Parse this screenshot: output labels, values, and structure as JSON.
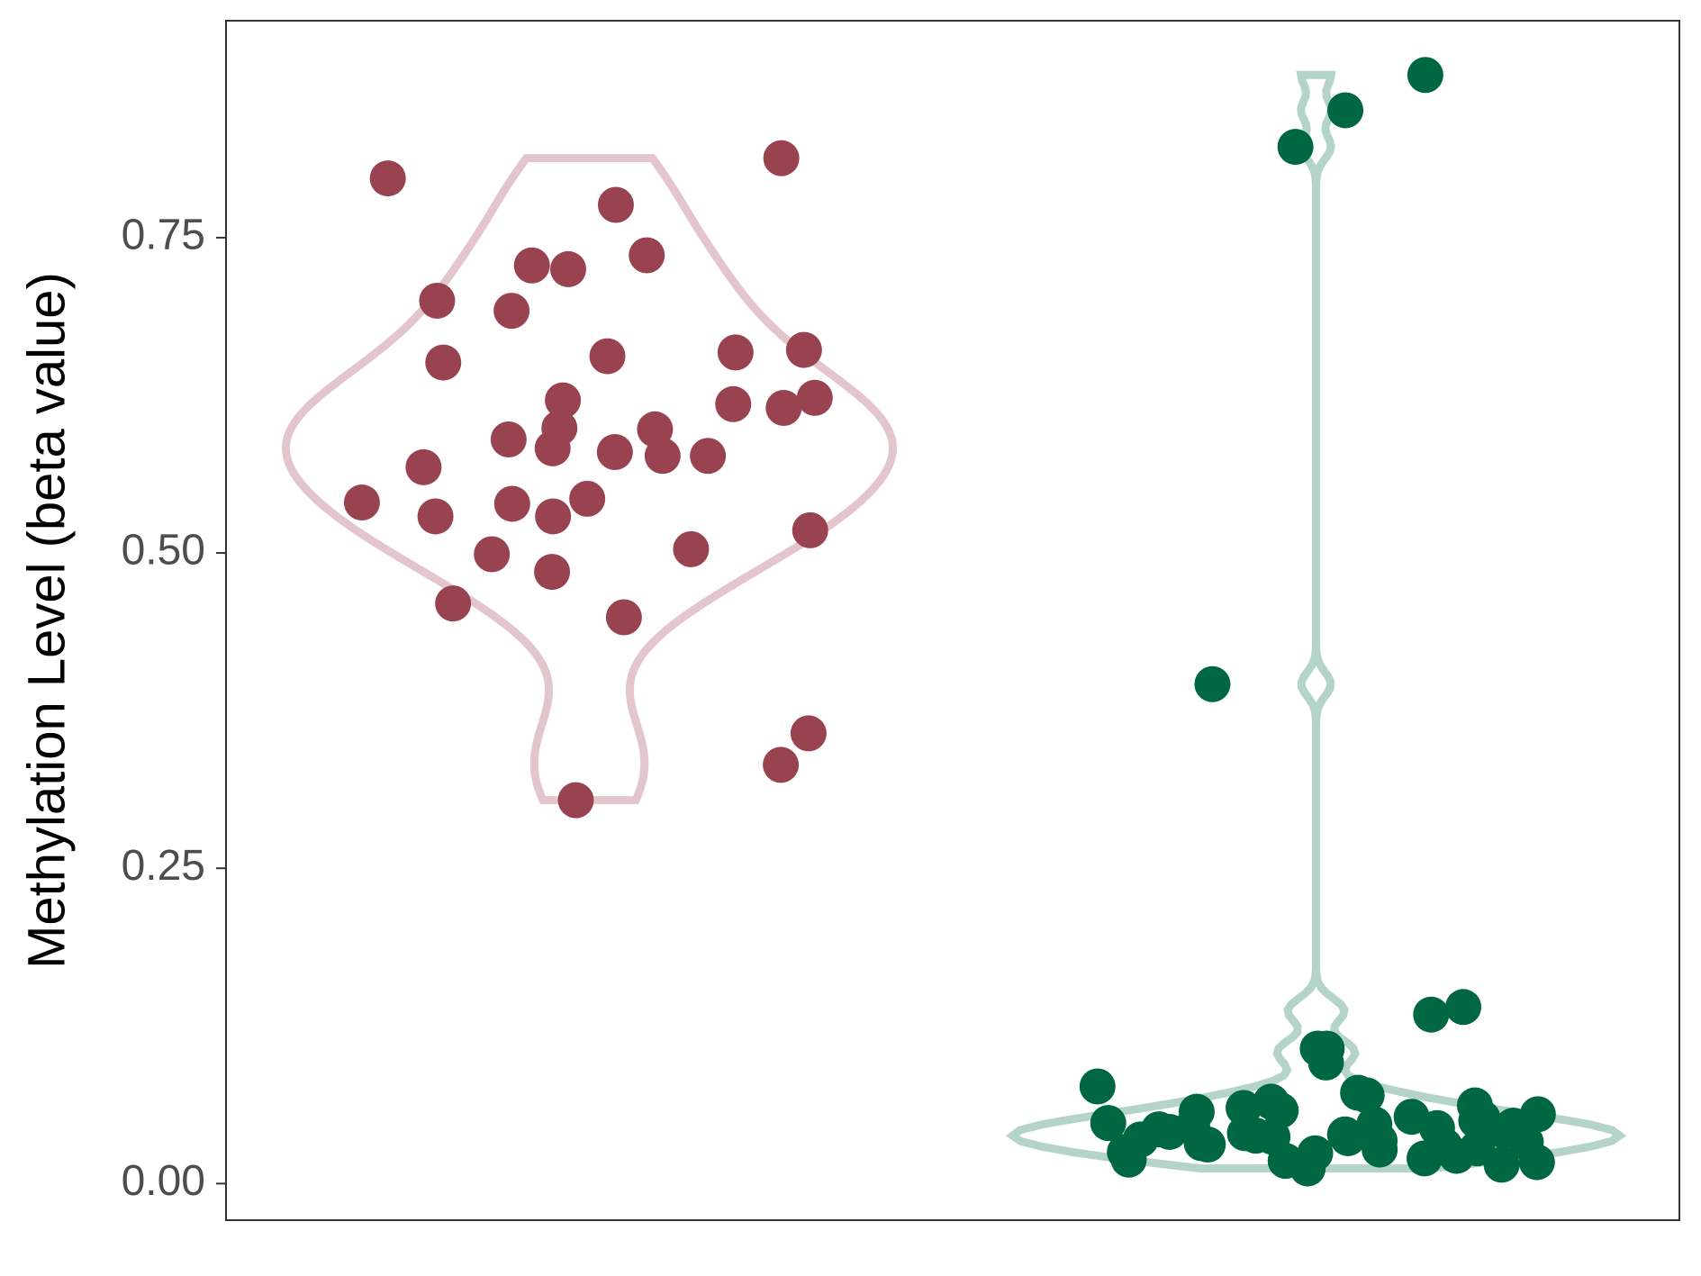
{
  "chart_data": {
    "type": "violin",
    "y_label": "Methylation Level (beta value)",
    "ylim": [
      -0.029,
      0.922
    ],
    "yticks": [
      {
        "value": 0,
        "label": "0.00"
      },
      {
        "value": 0.25,
        "label": "0.25"
      },
      {
        "value": 0.5,
        "label": "0.50"
      },
      {
        "value": 0.75,
        "label": "0.75"
      }
    ],
    "grid": false,
    "series": [
      {
        "color": "#9a4350",
        "outline_color": "#e3c6cb",
        "values": [
          0.813,
          0.797,
          0.776,
          0.728,
          0.725,
          0.736,
          0.7,
          0.692,
          0.656,
          0.661,
          0.659,
          0.651,
          0.623,
          0.618,
          0.621,
          0.615,
          0.599,
          0.598,
          0.59,
          0.577,
          0.58,
          0.577,
          0.583,
          0.568,
          0.539,
          0.543,
          0.54,
          0.529,
          0.529,
          0.518,
          0.503,
          0.499,
          0.485,
          0.46,
          0.449,
          0.357,
          0.332,
          0.304
        ]
      },
      {
        "color": "#006743",
        "outline_color": "#b5d4c9",
        "values": [
          0.879,
          0.851,
          0.822,
          0.396,
          0.14,
          0.134,
          0.107,
          0.107,
          0.096,
          0.077,
          0.072,
          0.07,
          0.065,
          0.062,
          0.06,
          0.058,
          0.057,
          0.055,
          0.053,
          0.052,
          0.05,
          0.048,
          0.047,
          0.046,
          0.045,
          0.044,
          0.043,
          0.042,
          0.041,
          0.04,
          0.039,
          0.038,
          0.037,
          0.036,
          0.035,
          0.034,
          0.033,
          0.032,
          0.031,
          0.03,
          0.028,
          0.027,
          0.025,
          0.024,
          0.022,
          0.02,
          0.019,
          0.018,
          0.017,
          0.015,
          0.012
        ]
      }
    ]
  }
}
